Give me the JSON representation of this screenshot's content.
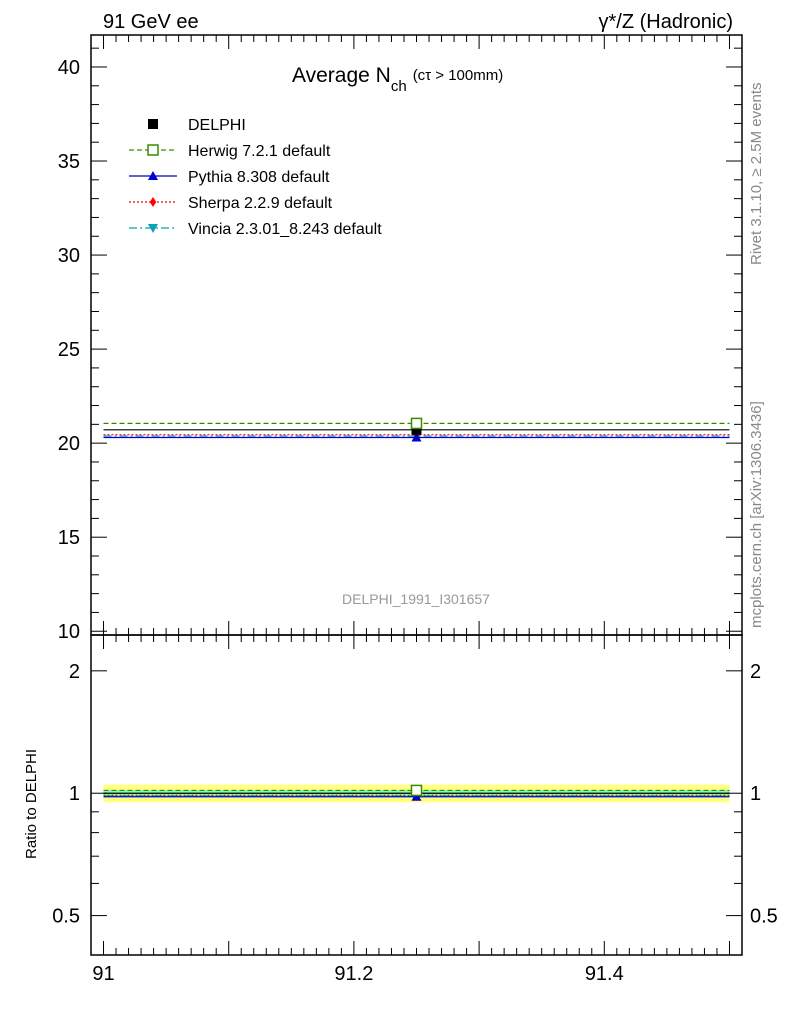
{
  "header": {
    "left": "91 GeV ee",
    "right": "γ*/Z (Hadronic)"
  },
  "title": {
    "main": "Average N",
    "sub": "ch",
    "cut": "(cτ > 100mm)"
  },
  "side_labels": {
    "rivet": "Rivet 3.1.10, ≥ 2.5M events",
    "mcplots": "mcplots.cern.ch [arXiv:1306.3436]"
  },
  "watermark": "DELPHI_1991_I301657",
  "ratio_ylabel": "Ratio to DELPHI",
  "colors": {
    "data": "#000000",
    "herwig": "#3a8a00",
    "pythia": "#0000cc",
    "sherpa": "#ff0000",
    "vincia": "#0aa0b8",
    "band_inner": "#7fffb0",
    "band_outer": "#ffff80"
  },
  "chart_data": [
    {
      "type": "line",
      "panel": "main",
      "xlim": [
        90.99,
        91.51
      ],
      "ylim": [
        9.8,
        41.7
      ],
      "yticks": [
        10,
        15,
        20,
        25,
        30,
        35,
        40
      ],
      "ytick_labels": [
        "10",
        "15",
        "20",
        "25",
        "30",
        "35",
        "40"
      ],
      "xbin": [
        91.0,
        91.5
      ],
      "x": [
        91.25
      ],
      "legend_position": "top-left",
      "series": [
        {
          "name": "DELPHI",
          "key": "data",
          "marker": "square-filled",
          "values": [
            20.71
          ],
          "error": [
            0.38
          ]
        },
        {
          "name": "Herwig 7.2.1 default",
          "key": "herwig",
          "marker": "square-open",
          "dash": "dashed",
          "values": [
            21.05
          ]
        },
        {
          "name": "Pythia 8.308 default",
          "key": "pythia",
          "marker": "triangle-up",
          "dash": "solid",
          "values": [
            20.3
          ]
        },
        {
          "name": "Sherpa 2.2.9 default",
          "key": "sherpa",
          "marker": "diamond",
          "dash": "dotted",
          "values": [
            20.45
          ]
        },
        {
          "name": "Vincia 2.3.01_8.243 default",
          "key": "vincia",
          "marker": "triangle-down",
          "dash": "dashdot",
          "values": [
            20.38
          ]
        }
      ]
    },
    {
      "type": "line",
      "panel": "ratio",
      "xlim": [
        90.99,
        91.51
      ],
      "ylim": [
        0.4,
        2.45
      ],
      "log_scale": true,
      "yticks": [
        0.5,
        1,
        2
      ],
      "ytick_labels": [
        "0.5",
        "1",
        "2"
      ],
      "xticks": [
        91.0,
        91.2,
        91.4
      ],
      "xtick_labels": [
        "91",
        "91.2",
        "91.4"
      ],
      "xbin": [
        91.0,
        91.5
      ],
      "x": [
        91.25
      ],
      "band_inner": [
        0.982,
        1.018
      ],
      "band_outer": [
        0.95,
        1.05
      ],
      "series": [
        {
          "key": "data",
          "values": [
            1.0
          ]
        },
        {
          "key": "herwig",
          "values": [
            1.016
          ]
        },
        {
          "key": "pythia",
          "values": [
            0.98
          ]
        },
        {
          "key": "sherpa",
          "values": [
            0.988
          ]
        },
        {
          "key": "vincia",
          "values": [
            0.984
          ]
        }
      ]
    }
  ]
}
